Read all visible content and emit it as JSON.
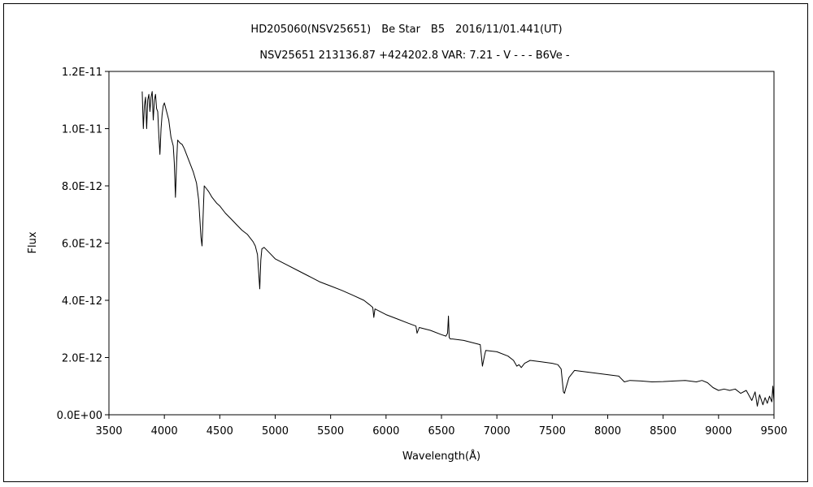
{
  "chart_data": {
    "type": "line",
    "title": "HD205060(NSV25651)　Be Star　B5　2016/11/01.441(UT)",
    "subtitle": "NSV25651 213136.87 +424202.8 VAR: 7.21 - V - - - B6Ve -",
    "xlabel": "Wavelength(Å)",
    "ylabel": "Flux",
    "xlim": [
      3500,
      9500
    ],
    "ylim": [
      0,
      1.2e-11
    ],
    "x_ticks": [
      "3500",
      "4000",
      "4500",
      "5000",
      "5500",
      "6000",
      "6500",
      "7000",
      "7500",
      "8000",
      "8500",
      "9000",
      "9500"
    ],
    "y_ticks": [
      "0.0E+00",
      "2.0E-12",
      "4.0E-12",
      "6.0E-12",
      "8.0E-12",
      "1.0E-11",
      "1.2E-11"
    ],
    "grid": false,
    "legend": "none",
    "series": [
      {
        "color": "#000000",
        "x": [
          3800,
          3810,
          3820,
          3830,
          3840,
          3850,
          3860,
          3870,
          3880,
          3890,
          3900,
          3910,
          3920,
          3930,
          3940,
          3950,
          3960,
          3970,
          3980,
          3990,
          4000,
          4020,
          4040,
          4060,
          4080,
          4090,
          4100,
          4110,
          4120,
          4140,
          4160,
          4180,
          4200,
          4230,
          4260,
          4290,
          4310,
          4330,
          4340,
          4350,
          4360,
          4380,
          4400,
          4430,
          4471,
          4500,
          4550,
          4600,
          4650,
          4700,
          4750,
          4800,
          4820,
          4840,
          4850,
          4861,
          4870,
          4880,
          4900,
          4950,
          5000,
          5100,
          5200,
          5300,
          5400,
          5500,
          5600,
          5700,
          5800,
          5850,
          5880,
          5890,
          5900,
          5950,
          6000,
          6100,
          6200,
          6270,
          6280,
          6300,
          6400,
          6500,
          6540,
          6555,
          6563,
          6570,
          6580,
          6600,
          6700,
          6800,
          6850,
          6870,
          6880,
          6890,
          6900,
          7000,
          7100,
          7150,
          7180,
          7200,
          7220,
          7250,
          7300,
          7400,
          7500,
          7550,
          7580,
          7590,
          7600,
          7610,
          7620,
          7650,
          7700,
          7800,
          7900,
          8000,
          8100,
          8150,
          8200,
          8300,
          8400,
          8500,
          8600,
          8700,
          8800,
          8850,
          8900,
          8950,
          9000,
          9050,
          9100,
          9150,
          9200,
          9250,
          9300,
          9330,
          9350,
          9370,
          9400,
          9420,
          9440,
          9460,
          9480,
          9490,
          9500
        ],
        "y": [
          1.13e-11,
          1e-11,
          1.08e-11,
          1.11e-11,
          1e-11,
          1.1e-11,
          1.12e-11,
          1.06e-11,
          1.11e-11,
          1.13e-11,
          1.03e-11,
          1.1e-11,
          1.12e-11,
          1.07e-11,
          1.06e-11,
          9.8e-12,
          9.1e-12,
          1e-11,
          1.05e-11,
          1.08e-11,
          1.09e-11,
          1.06e-11,
          1.03e-11,
          9.7e-12,
          9.4e-12,
          8.8e-12,
          7.6e-12,
          8.8e-12,
          9.6e-12,
          9.5e-12,
          9.45e-12,
          9.3e-12,
          9.1e-12,
          8.8e-12,
          8.5e-12,
          8.1e-12,
          7.5e-12,
          6.2e-12,
          5.9e-12,
          7e-12,
          8e-12,
          7.9e-12,
          7.8e-12,
          7.6e-12,
          7.4e-12,
          7.3e-12,
          7.05e-12,
          6.85e-12,
          6.65e-12,
          6.45e-12,
          6.3e-12,
          6.05e-12,
          5.9e-12,
          5.6e-12,
          5e-12,
          4.4e-12,
          5.4e-12,
          5.8e-12,
          5.85e-12,
          5.65e-12,
          5.45e-12,
          5.25e-12,
          5.05e-12,
          4.85e-12,
          4.65e-12,
          4.5e-12,
          4.35e-12,
          4.18e-12,
          4e-12,
          3.85e-12,
          3.75e-12,
          3.4e-12,
          3.7e-12,
          3.6e-12,
          3.5e-12,
          3.35e-12,
          3.2e-12,
          3.1e-12,
          2.85e-12,
          3.05e-12,
          2.95e-12,
          2.8e-12,
          2.75e-12,
          2.85e-12,
          3.45e-12,
          2.7e-12,
          2.65e-12,
          2.65e-12,
          2.6e-12,
          2.5e-12,
          2.45e-12,
          1.7e-12,
          1.9e-12,
          2.1e-12,
          2.25e-12,
          2.2e-12,
          2.05e-12,
          1.9e-12,
          1.7e-12,
          1.75e-12,
          1.65e-12,
          1.8e-12,
          1.9e-12,
          1.85e-12,
          1.8e-12,
          1.75e-12,
          1.6e-12,
          1.2e-12,
          8e-13,
          7.5e-13,
          9e-13,
          1.3e-12,
          1.55e-12,
          1.5e-12,
          1.45e-12,
          1.4e-12,
          1.35e-12,
          1.15e-12,
          1.2e-12,
          1.18e-12,
          1.15e-12,
          1.16e-12,
          1.18e-12,
          1.2e-12,
          1.15e-12,
          1.2e-12,
          1.12e-12,
          9.5e-13,
          8.5e-13,
          9e-13,
          8.5e-13,
          9e-13,
          7.5e-13,
          8.5e-13,
          5e-13,
          8e-13,
          3e-13,
          7e-13,
          3.5e-13,
          6e-13,
          4e-13,
          6.5e-13,
          4.5e-13,
          1e-12,
          4.5e-13
        ]
      }
    ]
  }
}
